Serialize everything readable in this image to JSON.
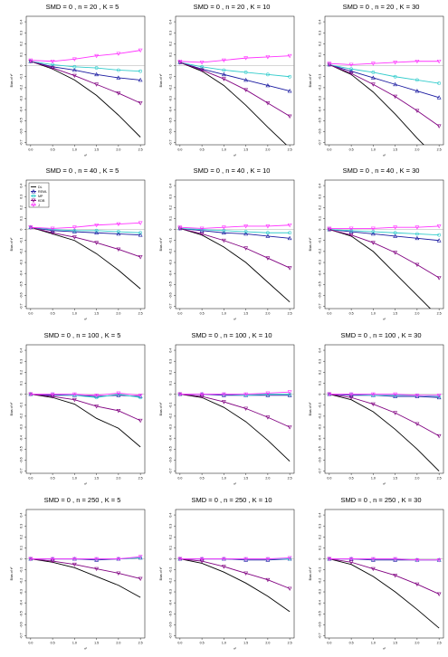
{
  "chart_data": {
    "type": "line",
    "layout": "4x3 grid of panels",
    "x": [
      0,
      0.5,
      1,
      1.5,
      2,
      2.5
    ],
    "x_tick_labels": [
      "0.0",
      "0.5",
      "1.0",
      "1.5",
      "2.0",
      "2.5"
    ],
    "y_tick_values": [
      0.4,
      0.3,
      0.2,
      0.1,
      0,
      -0.1,
      -0.2,
      -0.3,
      -0.4,
      -0.5,
      -0.6,
      -0.7
    ],
    "y_tick_labels": [
      "0.4",
      "0.3",
      "0.2",
      "0.1",
      "0",
      "-0.1",
      "-0.2",
      "-0.3",
      "-0.4",
      "-0.5",
      "-0.6",
      "-0.7"
    ],
    "ylim": [
      -0.72,
      0.45
    ],
    "xlim": [
      -0.1,
      2.6
    ],
    "xlabel": "τ²",
    "ylabel": "Bias of τ²",
    "reference_line": 0,
    "legend": {
      "panel_index": 3,
      "placement": "top-left",
      "entries": [
        "DL",
        "REML",
        "MP",
        "KDB",
        "J"
      ]
    },
    "series_styles": [
      {
        "name": "DL",
        "color": "#000000",
        "marker": "none"
      },
      {
        "name": "REML",
        "color": "#1a1aa0",
        "marker": "triangle-up"
      },
      {
        "name": "MP",
        "color": "#33cccc",
        "marker": "circle"
      },
      {
        "name": "KDB",
        "color": "#800080",
        "marker": "triangle-down"
      },
      {
        "name": "J",
        "color": "#ff33ff",
        "marker": "triangle-down"
      }
    ],
    "panels": [
      {
        "title": "SMD = 0 , n = 20 , K = 5",
        "series": [
          {
            "name": "DL",
            "values": [
              0.04,
              -0.03,
              -0.13,
              -0.27,
              -0.45,
              -0.65
            ]
          },
          {
            "name": "REML",
            "values": [
              0.04,
              -0.01,
              -0.04,
              -0.08,
              -0.11,
              -0.13
            ]
          },
          {
            "name": "MP",
            "values": [
              0.04,
              0.01,
              -0.01,
              -0.02,
              -0.04,
              -0.05
            ]
          },
          {
            "name": "KDB",
            "values": [
              0.04,
              -0.02,
              -0.09,
              -0.17,
              -0.25,
              -0.34
            ]
          },
          {
            "name": "J",
            "values": [
              0.05,
              0.04,
              0.06,
              0.09,
              0.11,
              0.14
            ]
          }
        ]
      },
      {
        "title": "SMD = 0 , n = 20 , K = 10",
        "series": [
          {
            "name": "DL",
            "values": [
              0.03,
              -0.05,
              -0.18,
              -0.36,
              -0.56,
              -0.75
            ]
          },
          {
            "name": "REML",
            "values": [
              0.03,
              -0.03,
              -0.08,
              -0.13,
              -0.18,
              -0.23
            ]
          },
          {
            "name": "MP",
            "values": [
              0.03,
              -0.01,
              -0.04,
              -0.06,
              -0.08,
              -0.1
            ]
          },
          {
            "name": "KDB",
            "values": [
              0.03,
              -0.04,
              -0.12,
              -0.22,
              -0.34,
              -0.46
            ]
          },
          {
            "name": "J",
            "values": [
              0.04,
              0.03,
              0.05,
              0.07,
              0.08,
              0.09
            ]
          }
        ]
      },
      {
        "title": "SMD = 0 , n = 20 , K = 30",
        "series": [
          {
            "name": "DL",
            "values": [
              0.01,
              -0.08,
              -0.24,
              -0.44,
              -0.66,
              -0.86
            ]
          },
          {
            "name": "REML",
            "values": [
              0.01,
              -0.05,
              -0.11,
              -0.17,
              -0.23,
              -0.29
            ]
          },
          {
            "name": "MP",
            "values": [
              0.01,
              -0.03,
              -0.06,
              -0.1,
              -0.13,
              -0.16
            ]
          },
          {
            "name": "KDB",
            "values": [
              0.01,
              -0.07,
              -0.17,
              -0.28,
              -0.41,
              -0.55
            ]
          },
          {
            "name": "J",
            "values": [
              0.02,
              0.01,
              0.02,
              0.03,
              0.04,
              0.04
            ]
          }
        ]
      },
      {
        "title": "SMD = 0 , n = 40 , K = 5",
        "series": [
          {
            "name": "DL",
            "values": [
              0.02,
              -0.04,
              -0.1,
              -0.22,
              -0.37,
              -0.54
            ]
          },
          {
            "name": "REML",
            "values": [
              0.02,
              -0.01,
              -0.02,
              -0.03,
              -0.04,
              -0.05
            ]
          },
          {
            "name": "MP",
            "values": [
              0.02,
              0.0,
              -0.01,
              -0.01,
              -0.02,
              -0.03
            ]
          },
          {
            "name": "KDB",
            "values": [
              0.02,
              -0.03,
              -0.07,
              -0.12,
              -0.18,
              -0.25
            ]
          },
          {
            "name": "J",
            "values": [
              0.02,
              0.01,
              0.02,
              0.04,
              0.05,
              0.06
            ]
          }
        ]
      },
      {
        "title": "SMD = 0 , n = 40 , K = 10",
        "series": [
          {
            "name": "DL",
            "values": [
              0.01,
              -0.05,
              -0.16,
              -0.3,
              -0.48,
              -0.66
            ]
          },
          {
            "name": "REML",
            "values": [
              0.01,
              -0.01,
              -0.03,
              -0.04,
              -0.06,
              -0.08
            ]
          },
          {
            "name": "MP",
            "values": [
              0.01,
              0.0,
              -0.01,
              -0.02,
              -0.03,
              -0.03
            ]
          },
          {
            "name": "KDB",
            "values": [
              0.01,
              -0.04,
              -0.1,
              -0.17,
              -0.26,
              -0.35
            ]
          },
          {
            "name": "J",
            "values": [
              0.02,
              0.01,
              0.02,
              0.03,
              0.03,
              0.04
            ]
          }
        ]
      },
      {
        "title": "SMD = 0 , n = 40 , K = 30",
        "series": [
          {
            "name": "DL",
            "values": [
              0.0,
              -0.06,
              -0.2,
              -0.4,
              -0.6,
              -0.8
            ]
          },
          {
            "name": "REML",
            "values": [
              0.0,
              -0.02,
              -0.04,
              -0.06,
              -0.08,
              -0.1
            ]
          },
          {
            "name": "MP",
            "values": [
              0.0,
              -0.01,
              -0.02,
              -0.03,
              -0.04,
              -0.05
            ]
          },
          {
            "name": "KDB",
            "values": [
              0.0,
              -0.05,
              -0.12,
              -0.21,
              -0.32,
              -0.44
            ]
          },
          {
            "name": "J",
            "values": [
              0.01,
              0.01,
              0.01,
              0.02,
              0.02,
              0.03
            ]
          }
        ]
      },
      {
        "title": "SMD = 0 , n = 100 , K = 5",
        "series": [
          {
            "name": "DL",
            "values": [
              0.0,
              -0.03,
              -0.09,
              -0.22,
              -0.31,
              -0.48
            ]
          },
          {
            "name": "REML",
            "values": [
              0.0,
              -0.01,
              -0.01,
              -0.02,
              -0.01,
              -0.02
            ]
          },
          {
            "name": "MP",
            "values": [
              0.0,
              0.0,
              -0.01,
              -0.03,
              0.0,
              -0.03
            ]
          },
          {
            "name": "KDB",
            "values": [
              0.0,
              -0.02,
              -0.05,
              -0.11,
              -0.15,
              -0.24
            ]
          },
          {
            "name": "J",
            "values": [
              0.0,
              0.0,
              0.0,
              -0.01,
              0.01,
              -0.01
            ]
          }
        ]
      },
      {
        "title": "SMD = 0 , n = 100 , K = 10",
        "series": [
          {
            "name": "DL",
            "values": [
              0.0,
              -0.03,
              -0.12,
              -0.25,
              -0.42,
              -0.61
            ]
          },
          {
            "name": "REML",
            "values": [
              0.0,
              0.0,
              -0.01,
              -0.01,
              -0.01,
              -0.01
            ]
          },
          {
            "name": "MP",
            "values": [
              0.0,
              0.0,
              0.0,
              -0.01,
              0.0,
              0.0
            ]
          },
          {
            "name": "KDB",
            "values": [
              0.0,
              -0.02,
              -0.07,
              -0.13,
              -0.21,
              -0.3
            ]
          },
          {
            "name": "J",
            "values": [
              0.0,
              0.0,
              0.0,
              0.0,
              0.01,
              0.02
            ]
          }
        ]
      },
      {
        "title": "SMD = 0 , n = 100 , K = 30",
        "series": [
          {
            "name": "DL",
            "values": [
              0.0,
              -0.05,
              -0.16,
              -0.32,
              -0.5,
              -0.7
            ]
          },
          {
            "name": "REML",
            "values": [
              0.0,
              -0.01,
              -0.01,
              -0.02,
              -0.02,
              -0.03
            ]
          },
          {
            "name": "MP",
            "values": [
              0.0,
              0.0,
              -0.01,
              -0.01,
              -0.01,
              -0.02
            ]
          },
          {
            "name": "KDB",
            "values": [
              0.0,
              -0.03,
              -0.09,
              -0.17,
              -0.27,
              -0.38
            ]
          },
          {
            "name": "J",
            "values": [
              0.0,
              0.0,
              0.0,
              0.0,
              -0.01,
              -0.01
            ]
          }
        ]
      },
      {
        "title": "SMD = 0 , n = 250 , K = 5",
        "series": [
          {
            "name": "DL",
            "values": [
              0.0,
              -0.03,
              -0.08,
              -0.16,
              -0.24,
              -0.35
            ]
          },
          {
            "name": "REML",
            "values": [
              0.0,
              0.0,
              0.0,
              -0.01,
              0.0,
              0.01
            ]
          },
          {
            "name": "MP",
            "values": [
              0.0,
              0.0,
              0.0,
              0.0,
              0.0,
              0.01
            ]
          },
          {
            "name": "KDB",
            "values": [
              0.0,
              -0.02,
              -0.05,
              -0.09,
              -0.13,
              -0.18
            ]
          },
          {
            "name": "J",
            "values": [
              0.0,
              0.0,
              0.0,
              0.0,
              0.0,
              0.02
            ]
          }
        ]
      },
      {
        "title": "SMD = 0 , n = 250 , K = 10",
        "series": [
          {
            "name": "DL",
            "values": [
              0.0,
              -0.04,
              -0.12,
              -0.22,
              -0.34,
              -0.48
            ]
          },
          {
            "name": "REML",
            "values": [
              0.0,
              0.0,
              0.0,
              -0.01,
              -0.01,
              0.0
            ]
          },
          {
            "name": "MP",
            "values": [
              0.0,
              0.0,
              0.0,
              0.0,
              0.0,
              0.0
            ]
          },
          {
            "name": "KDB",
            "values": [
              0.0,
              -0.02,
              -0.07,
              -0.13,
              -0.19,
              -0.27
            ]
          },
          {
            "name": "J",
            "values": [
              0.0,
              0.0,
              0.0,
              0.0,
              0.0,
              0.01
            ]
          }
        ]
      },
      {
        "title": "SMD = 0 , n = 250 , K = 30",
        "series": [
          {
            "name": "DL",
            "values": [
              0.0,
              -0.05,
              -0.16,
              -0.3,
              -0.46,
              -0.63
            ]
          },
          {
            "name": "REML",
            "values": [
              0.0,
              0.0,
              -0.01,
              -0.01,
              -0.01,
              -0.01
            ]
          },
          {
            "name": "MP",
            "values": [
              0.0,
              0.0,
              0.0,
              0.0,
              -0.01,
              -0.01
            ]
          },
          {
            "name": "KDB",
            "values": [
              0.0,
              -0.03,
              -0.09,
              -0.15,
              -0.23,
              -0.32
            ]
          },
          {
            "name": "J",
            "values": [
              0.0,
              0.0,
              0.0,
              0.0,
              -0.01,
              -0.01
            ]
          }
        ]
      }
    ]
  }
}
